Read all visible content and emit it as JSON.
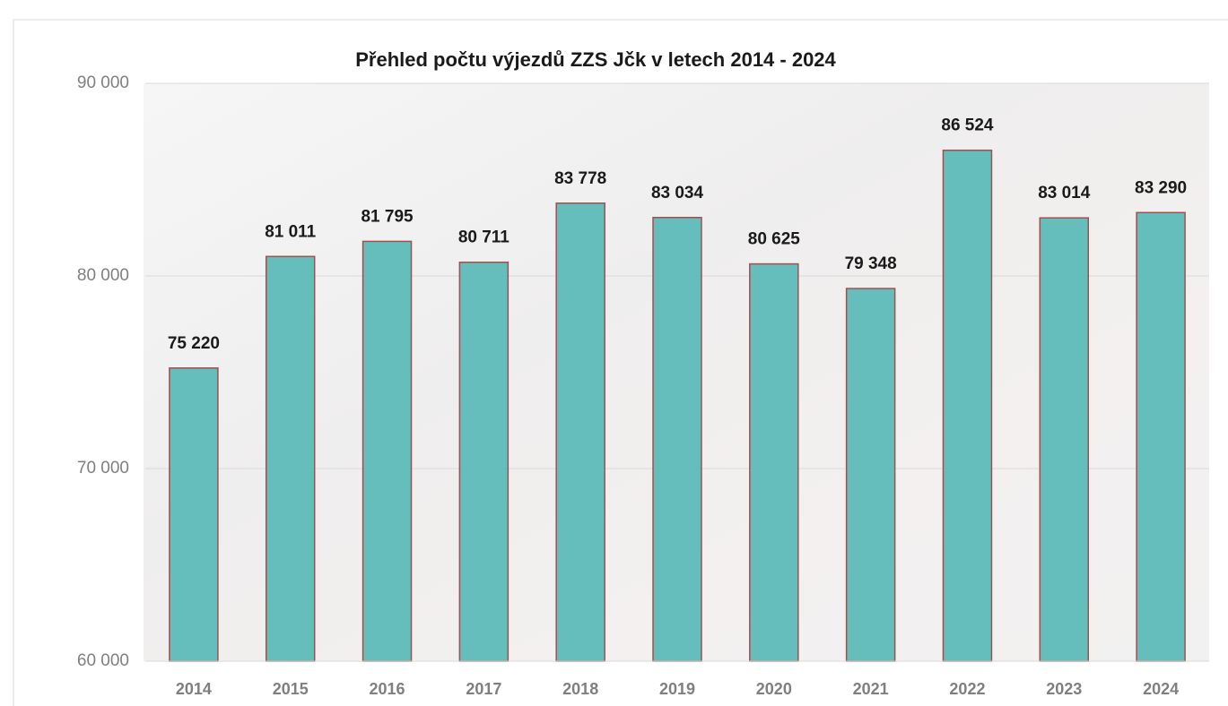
{
  "chart_data": {
    "type": "bar",
    "title": "Přehled počtu výjezdů ZZS Jčk v letech 2014 - 2024",
    "categories": [
      "2014",
      "2015",
      "2016",
      "2017",
      "2018",
      "2019",
      "2020",
      "2021",
      "2022",
      "2023",
      "2024"
    ],
    "values": [
      75220,
      81011,
      81795,
      80711,
      83778,
      83034,
      80625,
      79348,
      86524,
      83014,
      83290
    ],
    "value_labels": [
      "75 220",
      "81 011",
      "81 795",
      "80 711",
      "83 778",
      "83 034",
      "80 625",
      "79 348",
      "86 524",
      "83 014",
      "83 290"
    ],
    "color": "#5dbab7",
    "ylim": [
      60000,
      90000
    ],
    "yticks": [
      {
        "value": 60000,
        "label": "60 000"
      },
      {
        "value": 70000,
        "label": "70 000"
      },
      {
        "value": 80000,
        "label": "80 000"
      },
      {
        "value": 90000,
        "label": "90 000"
      }
    ],
    "grid": true
  }
}
